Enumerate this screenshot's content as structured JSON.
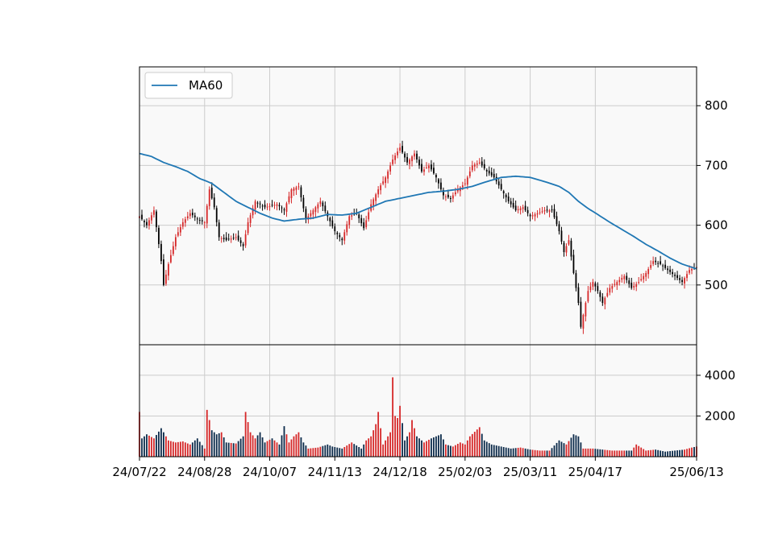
{
  "chart_data": {
    "type": "candlestick",
    "legend": {
      "label": "MA60",
      "placement": "top-left",
      "color": "#1f77b4"
    },
    "colors": {
      "up": "#d62728",
      "down": "#000000",
      "ma": "#1f77b4",
      "volume_up": "#d62728",
      "volume_down": "#0b2a4a",
      "grid": "#cccccc",
      "panel_bg": "#f9f9f9"
    },
    "grid": true,
    "price_axis": {
      "ticks": [
        "500",
        "600",
        "700",
        "800"
      ],
      "range": [
        400,
        865
      ],
      "side": "right"
    },
    "volume_axis": {
      "ticks": [
        "2000",
        "4000"
      ],
      "range": [
        0,
        5500
      ],
      "side": "right"
    },
    "x_axis": {
      "tick_labels": [
        "24/07/22",
        "24/08/28",
        "24/10/07",
        "24/11/13",
        "24/12/18",
        "25/02/03",
        "25/03/11",
        "25/04/17",
        "25/06/13"
      ],
      "tick_index": [
        0,
        27,
        54,
        81,
        108,
        135,
        162,
        189,
        231
      ],
      "session_count": 232
    },
    "price_anchors": [
      [
        0,
        615
      ],
      [
        3,
        600
      ],
      [
        6,
        625
      ],
      [
        9,
        540
      ],
      [
        10,
        500
      ],
      [
        12,
        535
      ],
      [
        15,
        580
      ],
      [
        18,
        605
      ],
      [
        21,
        620
      ],
      [
        24,
        610
      ],
      [
        27,
        605
      ],
      [
        29,
        660
      ],
      [
        31,
        630
      ],
      [
        33,
        580
      ],
      [
        36,
        575
      ],
      [
        40,
        580
      ],
      [
        43,
        565
      ],
      [
        45,
        605
      ],
      [
        48,
        640
      ],
      [
        52,
        630
      ],
      [
        57,
        635
      ],
      [
        60,
        625
      ],
      [
        63,
        660
      ],
      [
        66,
        665
      ],
      [
        69,
        610
      ],
      [
        72,
        625
      ],
      [
        75,
        640
      ],
      [
        78,
        615
      ],
      [
        81,
        590
      ],
      [
        84,
        575
      ],
      [
        87,
        615
      ],
      [
        90,
        620
      ],
      [
        93,
        595
      ],
      [
        96,
        635
      ],
      [
        99,
        660
      ],
      [
        102,
        680
      ],
      [
        105,
        710
      ],
      [
        108,
        730
      ],
      [
        111,
        705
      ],
      [
        114,
        720
      ],
      [
        117,
        690
      ],
      [
        120,
        700
      ],
      [
        123,
        680
      ],
      [
        126,
        650
      ],
      [
        129,
        645
      ],
      [
        132,
        660
      ],
      [
        135,
        670
      ],
      [
        138,
        700
      ],
      [
        141,
        705
      ],
      [
        144,
        690
      ],
      [
        147,
        680
      ],
      [
        150,
        660
      ],
      [
        153,
        640
      ],
      [
        156,
        625
      ],
      [
        159,
        630
      ],
      [
        162,
        615
      ],
      [
        165,
        620
      ],
      [
        168,
        625
      ],
      [
        171,
        625
      ],
      [
        174,
        590
      ],
      [
        176,
        555
      ],
      [
        178,
        575
      ],
      [
        180,
        520
      ],
      [
        182,
        470
      ],
      [
        183,
        430
      ],
      [
        186,
        490
      ],
      [
        188,
        505
      ],
      [
        190,
        490
      ],
      [
        192,
        470
      ],
      [
        195,
        495
      ],
      [
        198,
        505
      ],
      [
        201,
        515
      ],
      [
        204,
        495
      ],
      [
        207,
        505
      ],
      [
        210,
        520
      ],
      [
        213,
        540
      ],
      [
        216,
        535
      ],
      [
        219,
        525
      ],
      [
        222,
        515
      ],
      [
        225,
        505
      ],
      [
        228,
        525
      ],
      [
        231,
        530
      ]
    ],
    "ma_anchors": [
      [
        0,
        720
      ],
      [
        5,
        715
      ],
      [
        10,
        705
      ],
      [
        15,
        698
      ],
      [
        20,
        690
      ],
      [
        25,
        678
      ],
      [
        27,
        675
      ],
      [
        30,
        670
      ],
      [
        35,
        655
      ],
      [
        40,
        640
      ],
      [
        45,
        630
      ],
      [
        50,
        620
      ],
      [
        55,
        612
      ],
      [
        60,
        607
      ],
      [
        66,
        610
      ],
      [
        72,
        612
      ],
      [
        78,
        618
      ],
      [
        84,
        617
      ],
      [
        90,
        620
      ],
      [
        96,
        630
      ],
      [
        102,
        640
      ],
      [
        108,
        645
      ],
      [
        114,
        650
      ],
      [
        120,
        655
      ],
      [
        126,
        657
      ],
      [
        132,
        660
      ],
      [
        138,
        665
      ],
      [
        144,
        673
      ],
      [
        150,
        680
      ],
      [
        156,
        682
      ],
      [
        162,
        680
      ],
      [
        168,
        673
      ],
      [
        174,
        665
      ],
      [
        178,
        655
      ],
      [
        182,
        640
      ],
      [
        186,
        628
      ],
      [
        190,
        618
      ],
      [
        195,
        605
      ],
      [
        200,
        593
      ],
      [
        205,
        581
      ],
      [
        210,
        568
      ],
      [
        215,
        557
      ],
      [
        220,
        545
      ],
      [
        225,
        535
      ],
      [
        231,
        527
      ]
    ],
    "volume_anchors": [
      [
        0,
        2200
      ],
      [
        1,
        900
      ],
      [
        3,
        1100
      ],
      [
        6,
        900
      ],
      [
        9,
        1400
      ],
      [
        12,
        800
      ],
      [
        15,
        700
      ],
      [
        18,
        750
      ],
      [
        21,
        600
      ],
      [
        24,
        900
      ],
      [
        27,
        400
      ],
      [
        28,
        2300
      ],
      [
        30,
        1300
      ],
      [
        32,
        1100
      ],
      [
        34,
        1200
      ],
      [
        36,
        700
      ],
      [
        40,
        650
      ],
      [
        43,
        1000
      ],
      [
        44,
        2200
      ],
      [
        46,
        1200
      ],
      [
        48,
        900
      ],
      [
        50,
        1200
      ],
      [
        52,
        700
      ],
      [
        55,
        900
      ],
      [
        58,
        600
      ],
      [
        60,
        1500
      ],
      [
        62,
        700
      ],
      [
        64,
        1000
      ],
      [
        66,
        1200
      ],
      [
        68,
        700
      ],
      [
        70,
        400
      ],
      [
        74,
        450
      ],
      [
        78,
        600
      ],
      [
        80,
        500
      ],
      [
        84,
        400
      ],
      [
        88,
        700
      ],
      [
        92,
        400
      ],
      [
        94,
        800
      ],
      [
        96,
        1000
      ],
      [
        98,
        1600
      ],
      [
        99,
        2200
      ],
      [
        101,
        600
      ],
      [
        102,
        800
      ],
      [
        104,
        1200
      ],
      [
        105,
        3900
      ],
      [
        106,
        2000
      ],
      [
        107,
        1900
      ],
      [
        108,
        2500
      ],
      [
        110,
        800
      ],
      [
        112,
        1200
      ],
      [
        113,
        1800
      ],
      [
        115,
        1000
      ],
      [
        118,
        700
      ],
      [
        121,
        900
      ],
      [
        125,
        1100
      ],
      [
        127,
        600
      ],
      [
        130,
        500
      ],
      [
        133,
        700
      ],
      [
        135,
        600
      ],
      [
        137,
        1000
      ],
      [
        141,
        1450
      ],
      [
        143,
        800
      ],
      [
        146,
        600
      ],
      [
        150,
        500
      ],
      [
        154,
        400
      ],
      [
        158,
        450
      ],
      [
        162,
        350
      ],
      [
        166,
        300
      ],
      [
        170,
        300
      ],
      [
        174,
        800
      ],
      [
        177,
        600
      ],
      [
        180,
        1100
      ],
      [
        182,
        1000
      ],
      [
        184,
        400
      ],
      [
        188,
        400
      ],
      [
        192,
        350
      ],
      [
        196,
        300
      ],
      [
        200,
        300
      ],
      [
        204,
        300
      ],
      [
        206,
        600
      ],
      [
        210,
        300
      ],
      [
        214,
        350
      ],
      [
        218,
        250
      ],
      [
        222,
        300
      ],
      [
        226,
        350
      ],
      [
        229,
        450
      ],
      [
        231,
        500
      ]
    ]
  }
}
